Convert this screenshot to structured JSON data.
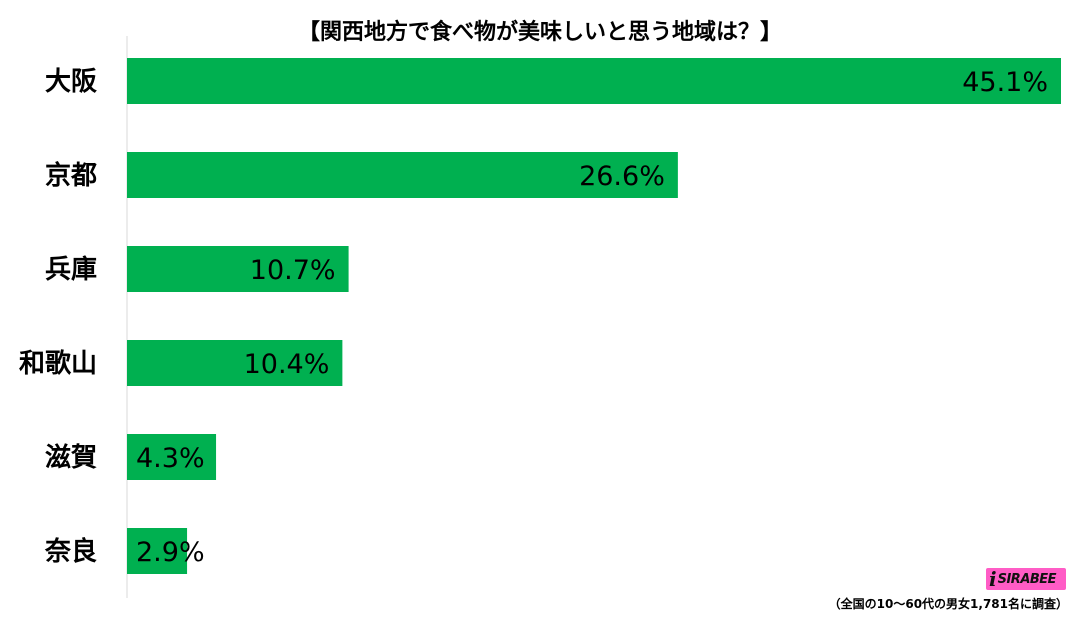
{
  "chart_data": {
    "type": "bar",
    "orientation": "horizontal",
    "title": "【関西地方で食べ物が美味しいと思う地域は？】",
    "categories": [
      "大阪",
      "京都",
      "兵庫",
      "和歌山",
      "滋賀",
      "奈良"
    ],
    "values": [
      45.1,
      26.6,
      10.7,
      10.4,
      4.3,
      2.9
    ],
    "value_labels": [
      "45.1%",
      "26.6%",
      "10.7%",
      "10.4%",
      "4.3%",
      "2.9%"
    ],
    "xlim": [
      0,
      45.1
    ],
    "grid": false,
    "bar_color": "#00b050"
  },
  "logo_text": "SIRABEE",
  "footnote": "（全国の10～60代の男女1,781名に調査）"
}
